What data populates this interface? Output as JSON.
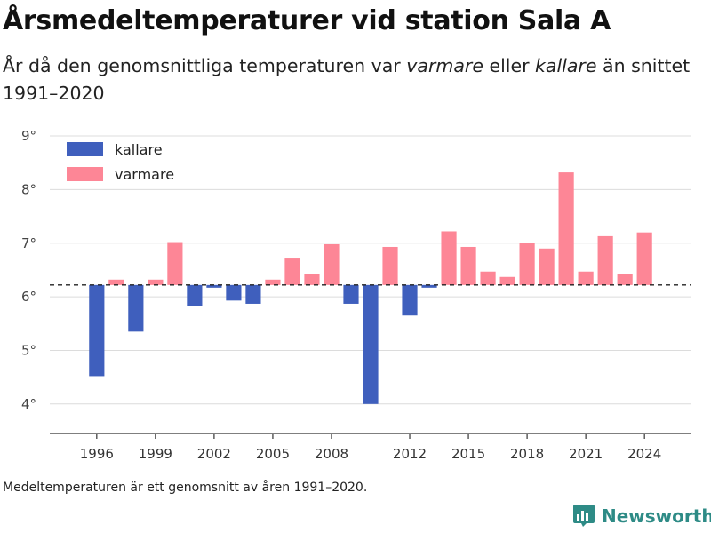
{
  "title": "Årsmedeltemperaturer vid station Sala A",
  "subtitle": {
    "part1": "År då den genomsnittliga temperaturen var ",
    "em1": "varmare",
    "part2": " eller ",
    "em2": "kallare",
    "part3": " än snittet 1991–2020"
  },
  "footnote": "Medeltemperaturen är ett genomsnitt av åren 1991–2020.",
  "logo": {
    "text": "Newsworthy",
    "icon": "newsworthy-logo-icon",
    "color": "#2e8b86"
  },
  "colors": {
    "kallare": "#3f5fbd",
    "varmare": "#fd8696"
  },
  "chart_data": {
    "type": "bar",
    "baseline": 6.22,
    "ylim": [
      3.45,
      9.15
    ],
    "yticks": [
      4,
      5,
      6,
      7,
      8,
      9
    ],
    "ytick_labels": [
      "4°",
      "5°",
      "6°",
      "7°",
      "8°",
      "9°"
    ],
    "xlim": [
      1993.6,
      2026.4
    ],
    "xticks": [
      1996,
      1999,
      2002,
      2005,
      2008,
      2012,
      2015,
      2018,
      2021,
      2024
    ],
    "xtick_labels": [
      "1996",
      "1999",
      "2002",
      "2005",
      "2008",
      "2012",
      "2015",
      "2018",
      "2021",
      "2024"
    ],
    "legend": [
      {
        "label": "kallare",
        "color": "#3f5fbd"
      },
      {
        "label": "varmare",
        "color": "#fd8696"
      }
    ],
    "legend_position": "top-left",
    "baseline_style": "dashed",
    "grid": "horizontal",
    "years": [
      1996,
      1997,
      1998,
      1999,
      2000,
      2001,
      2002,
      2003,
      2004,
      2005,
      2006,
      2007,
      2008,
      2009,
      2010,
      2011,
      2012,
      2013,
      2014,
      2015,
      2016,
      2017,
      2018,
      2019,
      2020,
      2021,
      2022,
      2023,
      2024
    ],
    "values": [
      4.52,
      6.32,
      5.35,
      6.32,
      7.02,
      5.83,
      6.17,
      5.93,
      5.87,
      6.32,
      6.73,
      6.43,
      6.98,
      5.87,
      4.0,
      6.93,
      5.65,
      6.17,
      7.22,
      6.93,
      6.47,
      6.37,
      7.0,
      6.9,
      8.32,
      6.47,
      7.13,
      6.42,
      7.2
    ]
  }
}
